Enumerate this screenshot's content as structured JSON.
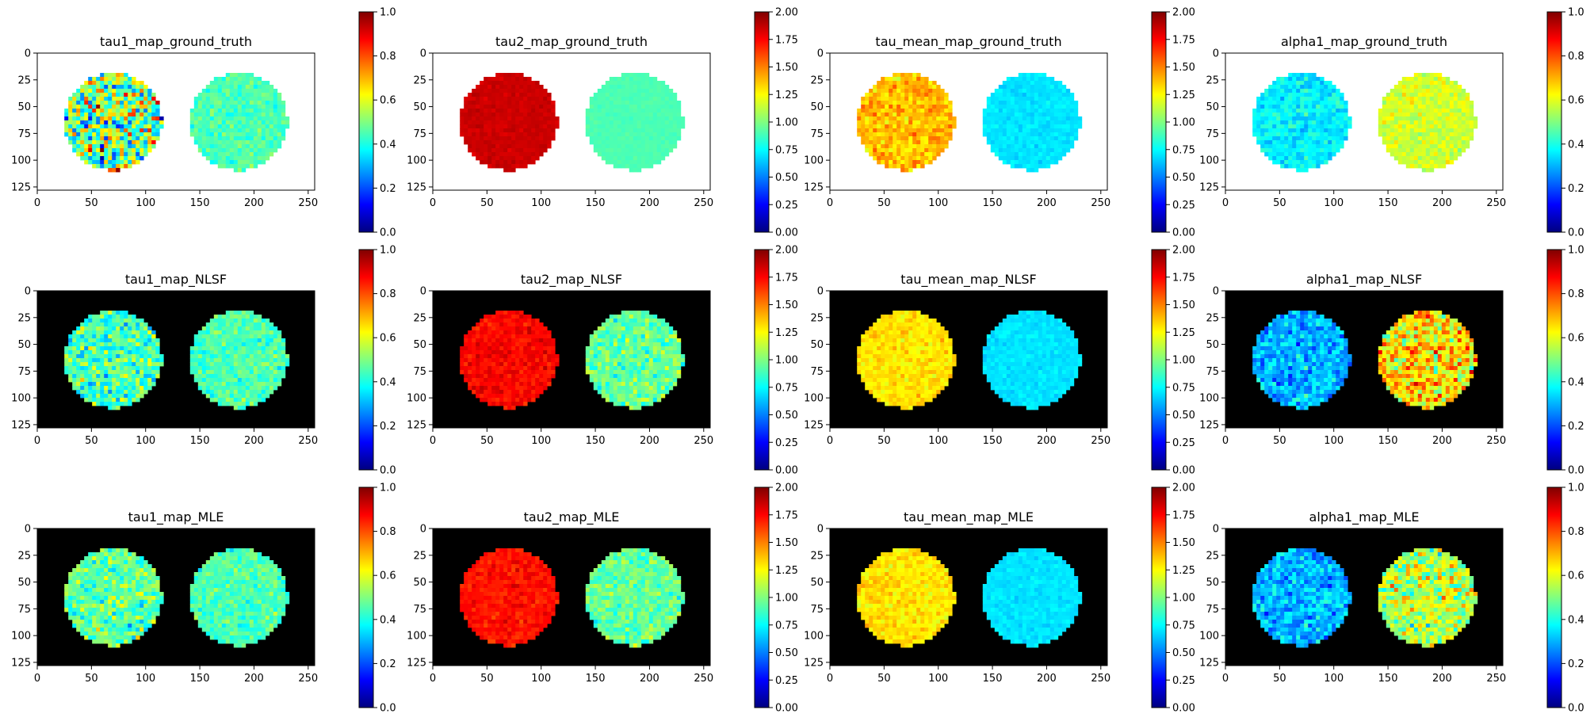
{
  "figure": {
    "background": "#ffffff",
    "colormap": "jet",
    "noise_seed": 12345
  },
  "chart_data": [
    {
      "type": "heatmap",
      "title": "tau1_map_ground_truth",
      "background": "#ffffff",
      "xlim": [
        0,
        256
      ],
      "ylim": [
        128,
        0
      ],
      "xticks": [
        "0",
        "50",
        "100",
        "150",
        "200",
        "250"
      ],
      "yticks": [
        "0",
        "25",
        "50",
        "75",
        "100",
        "125"
      ],
      "colorbar": {
        "range": [
          0,
          1
        ],
        "ticks": [
          "0.0",
          "0.2",
          "0.4",
          "0.6",
          "0.8",
          "1.0"
        ]
      },
      "regions": [
        {
          "shape": "circle",
          "center": [
            70,
            64
          ],
          "radius": 45,
          "mean": 0.5,
          "noise": 0.25
        },
        {
          "shape": "circle",
          "center": [
            186,
            64
          ],
          "radius": 45,
          "mean": 0.45,
          "noise": 0.05
        }
      ]
    },
    {
      "type": "heatmap",
      "title": "tau2_map_ground_truth",
      "background": "#ffffff",
      "xlim": [
        0,
        256
      ],
      "ylim": [
        128,
        0
      ],
      "xticks": [
        "0",
        "50",
        "100",
        "150",
        "200",
        "250"
      ],
      "yticks": [
        "0",
        "25",
        "50",
        "75",
        "100",
        "125"
      ],
      "colorbar": {
        "range": [
          0,
          2
        ],
        "ticks": [
          "0.00",
          "0.25",
          "0.50",
          "0.75",
          "1.00",
          "1.25",
          "1.50",
          "1.75",
          "2.00"
        ]
      },
      "regions": [
        {
          "shape": "circle",
          "center": [
            70,
            64
          ],
          "radius": 45,
          "mean": 1.85,
          "noise": 0.03
        },
        {
          "shape": "circle",
          "center": [
            186,
            64
          ],
          "radius": 45,
          "mean": 0.9,
          "noise": 0.02
        }
      ]
    },
    {
      "type": "heatmap",
      "title": "tau_mean_map_ground_truth",
      "background": "#ffffff",
      "xlim": [
        0,
        256
      ],
      "ylim": [
        128,
        0
      ],
      "xticks": [
        "0",
        "50",
        "100",
        "150",
        "200",
        "250"
      ],
      "yticks": [
        "0",
        "25",
        "50",
        "75",
        "100",
        "125"
      ],
      "colorbar": {
        "range": [
          0,
          2
        ],
        "ticks": [
          "0.00",
          "0.25",
          "0.50",
          "0.75",
          "1.00",
          "1.25",
          "1.50",
          "1.75",
          "2.00"
        ]
      },
      "regions": [
        {
          "shape": "circle",
          "center": [
            70,
            64
          ],
          "radius": 45,
          "mean": 1.38,
          "noise": 0.12
        },
        {
          "shape": "circle",
          "center": [
            186,
            64
          ],
          "radius": 45,
          "mean": 0.7,
          "noise": 0.04
        }
      ]
    },
    {
      "type": "heatmap",
      "title": "alpha1_map_ground_truth",
      "background": "#ffffff",
      "xlim": [
        0,
        256
      ],
      "ylim": [
        128,
        0
      ],
      "xticks": [
        "0",
        "50",
        "100",
        "150",
        "200",
        "250"
      ],
      "yticks": [
        "0",
        "25",
        "50",
        "75",
        "100",
        "125"
      ],
      "colorbar": {
        "range": [
          0,
          1
        ],
        "ticks": [
          "0.0",
          "0.2",
          "0.4",
          "0.6",
          "0.8",
          "1.0"
        ]
      },
      "regions": [
        {
          "shape": "circle",
          "center": [
            70,
            64
          ],
          "radius": 45,
          "mean": 0.37,
          "noise": 0.05
        },
        {
          "shape": "circle",
          "center": [
            186,
            64
          ],
          "radius": 45,
          "mean": 0.58,
          "noise": 0.05
        }
      ]
    },
    {
      "type": "heatmap",
      "title": "tau1_map_NLSF",
      "background": "#000000",
      "xlim": [
        0,
        256
      ],
      "ylim": [
        128,
        0
      ],
      "xticks": [
        "0",
        "50",
        "100",
        "150",
        "200",
        "250"
      ],
      "yticks": [
        "0",
        "25",
        "50",
        "75",
        "100",
        "125"
      ],
      "colorbar": {
        "range": [
          0,
          1
        ],
        "ticks": [
          "0.0",
          "0.2",
          "0.4",
          "0.6",
          "0.8",
          "1.0"
        ]
      },
      "regions": [
        {
          "shape": "circle",
          "center": [
            70,
            64
          ],
          "radius": 45,
          "mean": 0.45,
          "noise": 0.12
        },
        {
          "shape": "circle",
          "center": [
            186,
            64
          ],
          "radius": 45,
          "mean": 0.45,
          "noise": 0.06
        }
      ]
    },
    {
      "type": "heatmap",
      "title": "tau2_map_NLSF",
      "background": "#000000",
      "xlim": [
        0,
        256
      ],
      "ylim": [
        128,
        0
      ],
      "xticks": [
        "0",
        "50",
        "100",
        "150",
        "200",
        "250"
      ],
      "yticks": [
        "0",
        "25",
        "50",
        "75",
        "100",
        "125"
      ],
      "colorbar": {
        "range": [
          0,
          2
        ],
        "ticks": [
          "0.00",
          "0.25",
          "0.50",
          "0.75",
          "1.00",
          "1.25",
          "1.50",
          "1.75",
          "2.00"
        ]
      },
      "regions": [
        {
          "shape": "circle",
          "center": [
            70,
            64
          ],
          "radius": 45,
          "mean": 1.75,
          "noise": 0.07
        },
        {
          "shape": "circle",
          "center": [
            186,
            64
          ],
          "radius": 45,
          "mean": 0.95,
          "noise": 0.15
        }
      ]
    },
    {
      "type": "heatmap",
      "title": "tau_mean_map_NLSF",
      "background": "#000000",
      "xlim": [
        0,
        256
      ],
      "ylim": [
        128,
        0
      ],
      "xticks": [
        "0",
        "50",
        "100",
        "150",
        "200",
        "250"
      ],
      "yticks": [
        "0",
        "25",
        "50",
        "75",
        "100",
        "125"
      ],
      "colorbar": {
        "range": [
          0,
          2
        ],
        "ticks": [
          "0.00",
          "0.25",
          "0.50",
          "0.75",
          "1.00",
          "1.25",
          "1.50",
          "1.75",
          "2.00"
        ]
      },
      "regions": [
        {
          "shape": "circle",
          "center": [
            70,
            64
          ],
          "radius": 45,
          "mean": 1.3,
          "noise": 0.08
        },
        {
          "shape": "circle",
          "center": [
            186,
            64
          ],
          "radius": 45,
          "mean": 0.7,
          "noise": 0.04
        }
      ]
    },
    {
      "type": "heatmap",
      "title": "alpha1_map_NLSF",
      "background": "#000000",
      "xlim": [
        0,
        256
      ],
      "ylim": [
        128,
        0
      ],
      "xticks": [
        "0",
        "50",
        "100",
        "150",
        "200",
        "250"
      ],
      "yticks": [
        "0",
        "25",
        "50",
        "75",
        "100",
        "125"
      ],
      "colorbar": {
        "range": [
          0,
          1
        ],
        "ticks": [
          "0.0",
          "0.2",
          "0.4",
          "0.6",
          "0.8",
          "1.0"
        ]
      },
      "regions": [
        {
          "shape": "circle",
          "center": [
            70,
            64
          ],
          "radius": 45,
          "mean": 0.3,
          "noise": 0.08
        },
        {
          "shape": "circle",
          "center": [
            186,
            64
          ],
          "radius": 45,
          "mean": 0.65,
          "noise": 0.15
        }
      ]
    },
    {
      "type": "heatmap",
      "title": "tau1_map_MLE",
      "background": "#000000",
      "xlim": [
        0,
        256
      ],
      "ylim": [
        128,
        0
      ],
      "xticks": [
        "0",
        "50",
        "100",
        "150",
        "200",
        "250"
      ],
      "yticks": [
        "0",
        "25",
        "50",
        "75",
        "100",
        "125"
      ],
      "colorbar": {
        "range": [
          0,
          1
        ],
        "ticks": [
          "0.0",
          "0.2",
          "0.4",
          "0.6",
          "0.8",
          "1.0"
        ]
      },
      "regions": [
        {
          "shape": "circle",
          "center": [
            70,
            64
          ],
          "radius": 45,
          "mean": 0.47,
          "noise": 0.1
        },
        {
          "shape": "circle",
          "center": [
            186,
            64
          ],
          "radius": 45,
          "mean": 0.45,
          "noise": 0.06
        }
      ]
    },
    {
      "type": "heatmap",
      "title": "tau2_map_MLE",
      "background": "#000000",
      "xlim": [
        0,
        256
      ],
      "ylim": [
        128,
        0
      ],
      "xticks": [
        "0",
        "50",
        "100",
        "150",
        "200",
        "250"
      ],
      "yticks": [
        "0",
        "25",
        "50",
        "75",
        "100",
        "125"
      ],
      "colorbar": {
        "range": [
          0,
          2
        ],
        "ticks": [
          "0.00",
          "0.25",
          "0.50",
          "0.75",
          "1.00",
          "1.25",
          "1.50",
          "1.75",
          "2.00"
        ]
      },
      "regions": [
        {
          "shape": "circle",
          "center": [
            70,
            64
          ],
          "radius": 45,
          "mean": 1.72,
          "noise": 0.07
        },
        {
          "shape": "circle",
          "center": [
            186,
            64
          ],
          "radius": 45,
          "mean": 0.95,
          "noise": 0.13
        }
      ]
    },
    {
      "type": "heatmap",
      "title": "tau_mean_map_MLE",
      "background": "#000000",
      "xlim": [
        0,
        256
      ],
      "ylim": [
        128,
        0
      ],
      "xticks": [
        "0",
        "50",
        "100",
        "150",
        "200",
        "250"
      ],
      "yticks": [
        "0",
        "25",
        "50",
        "75",
        "100",
        "125"
      ],
      "colorbar": {
        "range": [
          0,
          2
        ],
        "ticks": [
          "0.00",
          "0.25",
          "0.50",
          "0.75",
          "1.00",
          "1.25",
          "1.50",
          "1.75",
          "2.00"
        ]
      },
      "regions": [
        {
          "shape": "circle",
          "center": [
            70,
            64
          ],
          "radius": 45,
          "mean": 1.3,
          "noise": 0.08
        },
        {
          "shape": "circle",
          "center": [
            186,
            64
          ],
          "radius": 45,
          "mean": 0.7,
          "noise": 0.04
        }
      ]
    },
    {
      "type": "heatmap",
      "title": "alpha1_map_MLE",
      "background": "#000000",
      "xlim": [
        0,
        256
      ],
      "ylim": [
        128,
        0
      ],
      "xticks": [
        "0",
        "50",
        "100",
        "150",
        "200",
        "250"
      ],
      "yticks": [
        "0",
        "25",
        "50",
        "75",
        "100",
        "125"
      ],
      "colorbar": {
        "range": [
          0,
          1
        ],
        "ticks": [
          "0.0",
          "0.2",
          "0.4",
          "0.6",
          "0.8",
          "1.0"
        ]
      },
      "regions": [
        {
          "shape": "circle",
          "center": [
            70,
            64
          ],
          "radius": 45,
          "mean": 0.3,
          "noise": 0.08
        },
        {
          "shape": "circle",
          "center": [
            186,
            64
          ],
          "radius": 45,
          "mean": 0.55,
          "noise": 0.13
        }
      ]
    }
  ]
}
